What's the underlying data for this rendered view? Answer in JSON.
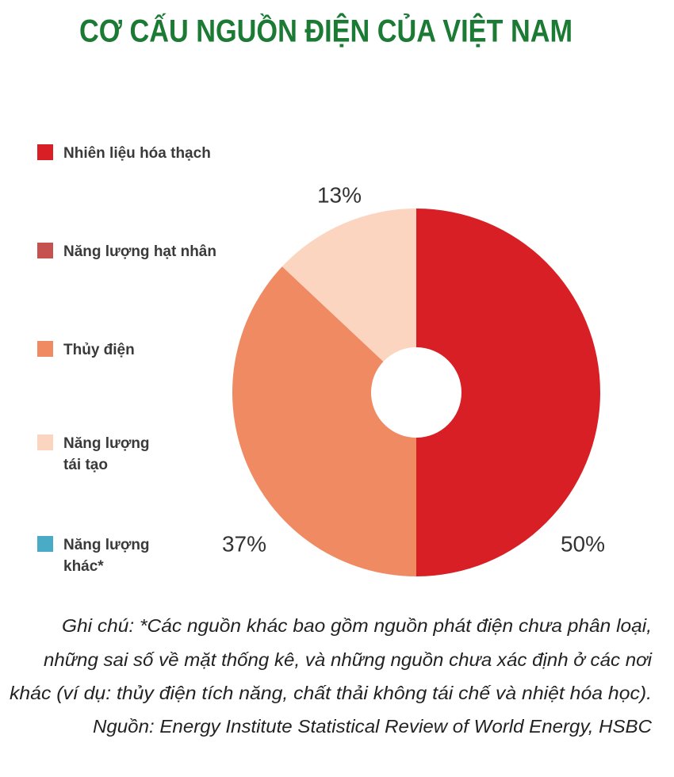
{
  "chart_data": {
    "type": "pie",
    "donut": true,
    "title": "CƠ CẤU NGUỒN ĐIỆN CỦA VIỆT NAM",
    "categories": [
      "Nhiên liệu hóa thạch",
      "Năng lượng hạt nhân",
      "Thủy điện",
      "Năng lượng\ntái tạo",
      "Năng lượng\nkhác*"
    ],
    "values": [
      50,
      0,
      37,
      13,
      0
    ],
    "value_labels": [
      "50%",
      null,
      "37%",
      "13%",
      null
    ],
    "colors": [
      "#d91f26",
      "#c65250",
      "#ef8a62",
      "#fcd5c0",
      "#4aabc6"
    ],
    "notes": [
      "Ghi chú: *Các nguồn khác bao gồm nguồn phát điện chưa phân loại,",
      "những sai số về mặt thống kê, và những nguồn chưa xác định ở các nơi",
      "khác (ví dụ: thủy điện tích năng, chất thải không tái chế và nhiệt hóa học).",
      "Nguồn: Energy Institute Statistical Review of World Energy, HSBC"
    ]
  }
}
